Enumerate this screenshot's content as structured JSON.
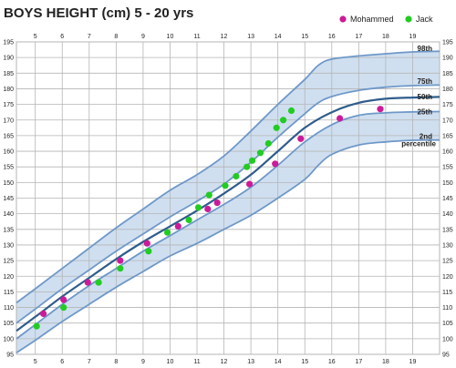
{
  "chart_data": {
    "type": "scatter",
    "title": "BOYS HEIGHT (cm)  5 - 20 yrs",
    "xlabel": "",
    "ylabel": "",
    "xlim": [
      4.3,
      20
    ],
    "ylim": [
      95,
      195
    ],
    "x_ticks": [
      5,
      6,
      7,
      8,
      9,
      10,
      11,
      12,
      13,
      14,
      15,
      16,
      17,
      18,
      19
    ],
    "y_ticks": [
      95,
      100,
      105,
      110,
      115,
      120,
      125,
      130,
      135,
      140,
      145,
      150,
      155,
      160,
      165,
      170,
      175,
      180,
      185,
      190,
      195
    ],
    "grid": true,
    "legend_position": "top-right",
    "colors": {
      "band_fill": "#cfdff0",
      "band_line": "#6f98c8",
      "median_line": "#2f5d8c",
      "grid": "#b5b5b5",
      "series_0": "#cc1a99",
      "series_1": "#22cc22"
    },
    "percentiles": [
      {
        "label": "98th",
        "x": [
          4.3,
          5,
          6,
          7,
          8,
          9,
          10,
          11,
          12,
          13,
          14,
          15,
          15.5,
          16,
          17,
          18,
          19,
          20
        ],
        "y": [
          111.5,
          116,
          122.5,
          129,
          135.5,
          141.5,
          147.5,
          152.5,
          158.5,
          166.5,
          175,
          183,
          187.5,
          189.5,
          190.5,
          191.2,
          191.8,
          192
        ]
      },
      {
        "label": "75th",
        "x": [
          4.3,
          5,
          6,
          7,
          8,
          9,
          10,
          11,
          12,
          13,
          14,
          15,
          15.5,
          16,
          17,
          18,
          19,
          20
        ],
        "y": [
          105,
          109.5,
          116,
          122,
          128,
          133.5,
          139,
          144,
          149.5,
          156.5,
          164.5,
          172,
          175.5,
          177.5,
          179.5,
          180.5,
          181,
          181.2
        ]
      },
      {
        "label": "50th",
        "x": [
          4.3,
          5,
          6,
          7,
          8,
          9,
          10,
          11,
          12,
          13,
          14,
          15,
          16,
          17,
          18,
          19,
          20
        ],
        "y": [
          102.5,
          107,
          113.5,
          119.5,
          125.5,
          131,
          136,
          141,
          146.5,
          152.5,
          160,
          167.5,
          172.5,
          175.5,
          176.8,
          177.2,
          177.4
        ]
      },
      {
        "label": "25th",
        "x": [
          4.3,
          5,
          6,
          7,
          8,
          9,
          10,
          11,
          12,
          13,
          14,
          15,
          16,
          17,
          18,
          19,
          20
        ],
        "y": [
          100,
          104.5,
          111,
          117,
          122.5,
          128,
          133,
          138,
          143,
          148.5,
          155.5,
          163,
          168.5,
          171.5,
          172.3,
          172.6,
          172.7
        ]
      },
      {
        "label": "2nd percentile",
        "x": [
          4.3,
          5,
          6,
          7,
          8,
          9,
          10,
          11,
          12,
          13,
          14,
          15,
          15.5,
          16,
          17,
          18,
          19,
          20
        ],
        "y": [
          95.5,
          99.5,
          105.5,
          111,
          116.5,
          121.5,
          126.5,
          130.5,
          135,
          139.5,
          145,
          151,
          155.5,
          159,
          162,
          163,
          163.5,
          163.6
        ]
      }
    ],
    "series": [
      {
        "name": "Mohammed",
        "color": "#cc1a99",
        "x": [
          5.3,
          6.05,
          6.95,
          8.15,
          9.15,
          10.3,
          11.4,
          11.75,
          12.95,
          13.9,
          14.85,
          16.3,
          17.8
        ],
        "y": [
          108,
          112.5,
          118,
          125,
          130.5,
          136,
          141.5,
          143.5,
          149.5,
          156,
          164,
          170.5,
          173.5
        ]
      },
      {
        "name": "Jack",
        "color": "#22cc22",
        "x": [
          5.05,
          6.05,
          7.35,
          8.15,
          9.2,
          9.9,
          10.7,
          11.05,
          11.45,
          12.05,
          12.45,
          12.85,
          13.05,
          13.35,
          13.65,
          13.95,
          14.2,
          14.5
        ],
        "y": [
          104,
          110,
          118,
          122.5,
          128,
          134,
          138,
          142,
          146,
          149,
          152,
          155,
          157,
          159.5,
          162.5,
          167.5,
          170,
          173
        ]
      }
    ]
  }
}
